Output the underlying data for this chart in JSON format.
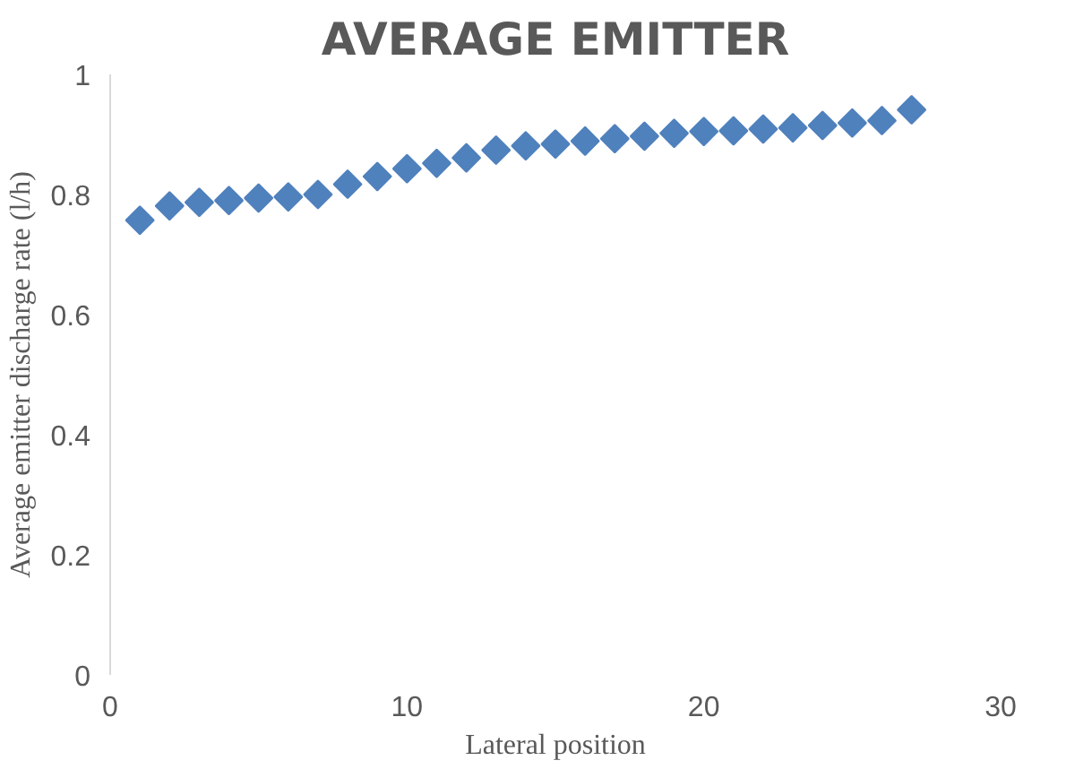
{
  "chart_data": {
    "type": "scatter",
    "title": "AVERAGE EMITTER",
    "xlabel": "Lateral position",
    "ylabel": "Average emitter discharge rate (l/h)",
    "x": [
      1,
      2,
      3,
      4,
      5,
      6,
      7,
      8,
      9,
      10,
      11,
      12,
      13,
      14,
      15,
      16,
      17,
      18,
      19,
      20,
      21,
      22,
      23,
      24,
      25,
      26,
      27
    ],
    "series": [
      {
        "color": "#4f81bd",
        "values": [
          0.757,
          0.781,
          0.787,
          0.79,
          0.794,
          0.796,
          0.8,
          0.817,
          0.83,
          0.843,
          0.852,
          0.861,
          0.874,
          0.881,
          0.884,
          0.889,
          0.893,
          0.897,
          0.902,
          0.905,
          0.906,
          0.909,
          0.911,
          0.915,
          0.919,
          0.923,
          0.941
        ]
      }
    ],
    "marker": "diamond",
    "xlim": [
      0,
      30
    ],
    "xticks": [
      0,
      10,
      20,
      30
    ],
    "ylim": [
      0,
      1
    ],
    "yticks": [
      0,
      {
        "value": 0.2,
        "label": "0.2"
      },
      {
        "value": 0.4,
        "label": "0.4"
      },
      {
        "value": 0.6,
        "label": "0.6"
      },
      {
        "value": 0.8,
        "label": "0.8"
      },
      1
    ],
    "grid": false
  }
}
